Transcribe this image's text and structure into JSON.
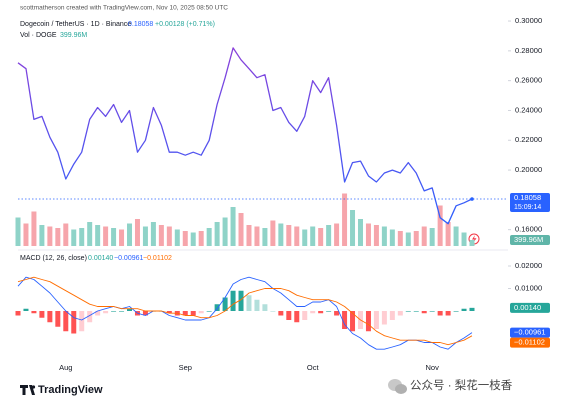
{
  "chart_data": {
    "type": "line",
    "attribution": "scottmatherson created with TradingView.com, Nov 10, 2025 08:50 UTC",
    "title": "Dogecoin / TetherUS · 1D · Binance",
    "last_price": "0.18058",
    "change": "+0.00128 (+0.71%)",
    "countdown": "15:09:14",
    "vol_title": "Vol · DOGE",
    "vol_last": "399.96M",
    "macd_title": "MACD (12, 26, close)",
    "macd_legend": [
      "0.00140",
      "−0.00961",
      "−0.01102"
    ],
    "brand": "TradingView",
    "watermark": "公众号 · 梨花一枝香",
    "categories": [
      null,
      null,
      null,
      null,
      null,
      null,
      "Aug",
      null,
      null,
      null,
      null,
      null,
      null,
      null,
      null,
      null,
      null,
      null,
      null,
      null,
      null,
      "Sep",
      null,
      null,
      null,
      null,
      null,
      null,
      null,
      null,
      null,
      null,
      null,
      null,
      null,
      null,
      null,
      "Oct",
      null,
      null,
      null,
      null,
      null,
      null,
      null,
      null,
      null,
      null,
      null,
      null,
      null,
      null,
      "Nov",
      null,
      null,
      null,
      null,
      null
    ],
    "series": [
      {
        "name": "DOGE",
        "color": "#2962ff",
        "color_top": "#8e3fd8",
        "values": [
          0.272,
          0.268,
          0.234,
          0.236,
          0.222,
          0.212,
          0.194,
          0.204,
          0.212,
          0.234,
          0.242,
          0.236,
          0.244,
          0.232,
          0.24,
          0.212,
          0.22,
          0.242,
          0.23,
          0.212,
          0.212,
          0.21,
          0.212,
          0.21,
          0.22,
          0.244,
          0.262,
          0.282,
          0.274,
          0.268,
          0.262,
          0.264,
          0.24,
          0.242,
          0.232,
          0.226,
          0.236,
          0.26,
          0.252,
          0.262,
          0.23,
          0.192,
          0.205,
          0.206,
          0.196,
          0.192,
          0.198,
          0.2,
          0.198,
          0.205,
          0.198,
          0.186,
          0.188,
          0.168,
          0.164,
          0.176,
          0.178,
          0.18058
        ]
      }
    ],
    "ylim": [
      0.1477,
      0.3054
    ],
    "yticks": [
      {
        "value": 0.3,
        "label": "0.30000"
      },
      {
        "value": 0.28,
        "label": "0.28000"
      },
      {
        "value": 0.26,
        "label": "0.26000"
      },
      {
        "value": 0.24,
        "label": "0.24000"
      },
      {
        "value": 0.22,
        "label": "0.22000"
      },
      {
        "value": 0.2,
        "label": "0.20000"
      },
      {
        "value": 0.16,
        "label": "0.16000"
      }
    ],
    "volume": {
      "up_color": "#8fd3c8",
      "down_color": "#f6a5ab",
      "values": [
        1900,
        1500,
        2300,
        1400,
        1300,
        1200,
        1500,
        1100,
        1200,
        1600,
        1400,
        1300,
        1200,
        1100,
        1500,
        1800,
        1300,
        1600,
        1400,
        1300,
        1100,
        1000,
        900,
        1000,
        1200,
        1600,
        1900,
        2600,
        2200,
        1400,
        1300,
        1200,
        1700,
        1500,
        1400,
        1300,
        1100,
        1300,
        1200,
        1400,
        1500,
        3500,
        2400,
        1800,
        1500,
        1400,
        1300,
        1100,
        1000,
        900,
        1000,
        1300,
        1200,
        2700,
        1600,
        1300,
        900,
        399.96
      ]
    },
    "macd": {
      "ylim": [
        -0.02089,
        0.02622
      ],
      "yticks": [
        {
          "value": 0.02,
          "label": "0.02000"
        },
        {
          "value": 0.01,
          "label": "0.01000"
        }
      ],
      "hist_colors": [
        "#26a69a",
        "#b2dfdb",
        "#ff5252",
        "#ffcdd2"
      ],
      "histogram": [
        -0.002,
        0.001,
        -0.001,
        -0.003,
        -0.005,
        -0.007,
        -0.009,
        -0.01,
        -0.009,
        -0.005,
        -0.002,
        -0.001,
        0,
        0,
        0.001,
        -0.002,
        -0.002,
        0,
        0,
        -0.001,
        -0.002,
        -0.002,
        -0.002,
        -0.001,
        0,
        0.003,
        0.006,
        0.009,
        0.009,
        0.007,
        0.005,
        0.003,
        0,
        -0.002,
        -0.004,
        -0.005,
        -0.004,
        -0.001,
        -0.001,
        0,
        -0.002,
        -0.008,
        -0.009,
        -0.008,
        -0.009,
        -0.008,
        -0.006,
        -0.004,
        -0.002,
        0,
        0,
        -0.001,
        0,
        -0.002,
        -0.002,
        0,
        0.001,
        0.0014
      ],
      "lines": [
        {
          "name": "MACD",
          "color": "#2962ff",
          "values": [
            0.011,
            0.015,
            0.014,
            0.011,
            0.008,
            0.004,
            0,
            -0.003,
            -0.004,
            -0.002,
            0,
            0.001,
            0.002,
            0.001,
            0.002,
            -0.001,
            -0.002,
            0,
            0,
            -0.002,
            -0.003,
            -0.004,
            -0.004,
            -0.004,
            -0.003,
            0.001,
            0.006,
            0.012,
            0.014,
            0.015,
            0.014,
            0.013,
            0.01,
            0.008,
            0.005,
            0.002,
            0.002,
            0.004,
            0.004,
            0.005,
            0.002,
            -0.006,
            -0.01,
            -0.012,
            -0.015,
            -0.017,
            -0.017,
            -0.016,
            -0.015,
            -0.013,
            -0.013,
            -0.014,
            -0.014,
            -0.016,
            -0.017,
            -0.014,
            -0.012,
            -0.00961
          ]
        },
        {
          "name": "Signal",
          "color": "#ff6d00",
          "values": [
            0.013,
            0.014,
            0.015,
            0.014,
            0.013,
            0.011,
            0.009,
            0.007,
            0.005,
            0.003,
            0.002,
            0.002,
            0.002,
            0.001,
            0.001,
            0.001,
            0,
            0,
            0,
            -0.001,
            -0.001,
            -0.002,
            -0.002,
            -0.003,
            -0.003,
            -0.002,
            0,
            0.003,
            0.005,
            0.008,
            0.009,
            0.01,
            0.01,
            0.01,
            0.009,
            0.007,
            0.006,
            0.005,
            0.005,
            0.005,
            0.004,
            0.002,
            -0.001,
            -0.004,
            -0.006,
            -0.009,
            -0.011,
            -0.012,
            -0.013,
            -0.013,
            -0.013,
            -0.013,
            -0.014,
            -0.014,
            -0.015,
            -0.014,
            -0.013,
            -0.01102
          ]
        }
      ]
    },
    "grid": false
  }
}
